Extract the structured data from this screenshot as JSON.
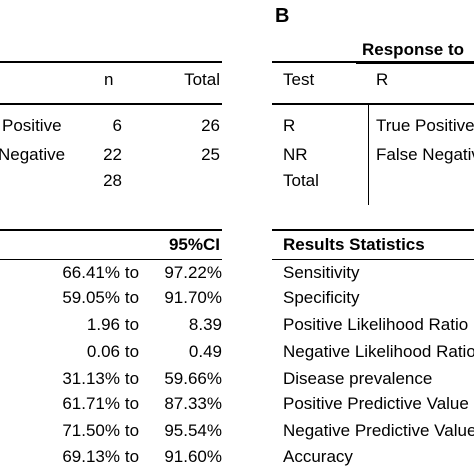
{
  "panel_label": "B",
  "left_table": {
    "headers": {
      "n": "n",
      "total": "Total"
    },
    "rows": [
      {
        "label": "Positive",
        "n": "6",
        "total": "26"
      },
      {
        "label": "Negative",
        "n": "22",
        "total": "25"
      },
      {
        "label": "",
        "n": "28",
        "total": ""
      }
    ]
  },
  "left_stats": {
    "header": "95%CI",
    "rows": [
      {
        "low": "66.41%",
        "sep": "to",
        "high": "97.22%"
      },
      {
        "low": "59.05%",
        "sep": "to",
        "high": "91.70%"
      },
      {
        "low": "1.96",
        "sep": "to",
        "high": "8.39"
      },
      {
        "low": "0.06",
        "sep": "to",
        "high": "0.49"
      },
      {
        "low": "31.13%",
        "sep": "to",
        "high": "59.66%"
      },
      {
        "low": "61.71%",
        "sep": "to",
        "high": "87.33%"
      },
      {
        "low": "71.50%",
        "sep": "to",
        "high": "95.54%"
      },
      {
        "low": "69.13%",
        "sep": "to",
        "high": "91.60%"
      }
    ]
  },
  "right_table": {
    "group_header": "Response to",
    "col_test": "Test",
    "col_r": "R",
    "rows": [
      {
        "test": "R",
        "result": "True Positive"
      },
      {
        "test": "NR",
        "result": "False Negative"
      },
      {
        "test": "Total",
        "result": ""
      }
    ]
  },
  "right_stats": {
    "header": "Results Statistics",
    "rows": [
      "Sensitivity",
      "Specificity",
      "Positive Likelihood Ratio",
      "Negative Likelihood Ratio",
      "Disease prevalence",
      "Positive Predictive Value",
      "Negative Predictive Value",
      "Accuracy"
    ]
  }
}
